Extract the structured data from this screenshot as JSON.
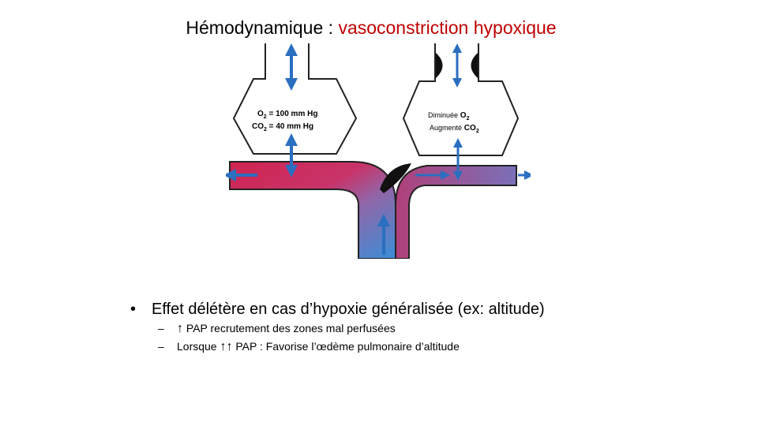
{
  "title": {
    "prefix": "Hémodynamique : ",
    "highlight": "vasoconstriction hypoxique"
  },
  "diagram": {
    "left_alveolus": {
      "o2": "100 mm Hg",
      "co2": "40 mm Hg"
    },
    "right_alveolus": {
      "line1": "Diminuée",
      "line2": "Augmenté"
    },
    "colors": {
      "oxygenated": "#d02450",
      "deoxygenated": "#3a8fd8",
      "arrow": "#2a6fc0"
    }
  },
  "bullets": {
    "main": "Effet délétère en cas d’hypoxie généralisée (ex: altitude)",
    "sub1": {
      "symbol": "↑",
      "text": " PAP recrutement des zones mal perfusées"
    },
    "sub2": {
      "prefix": "Lorsque ",
      "symbol": "↑↑",
      "text": " PAP : Favorise l’œdème pulmonaire d’altitude"
    }
  }
}
